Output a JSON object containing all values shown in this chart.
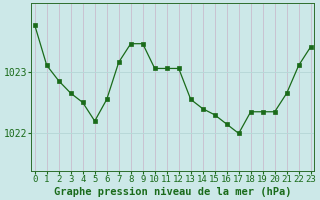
{
  "x": [
    0,
    1,
    2,
    3,
    4,
    5,
    6,
    7,
    8,
    9,
    10,
    11,
    12,
    13,
    14,
    15,
    16,
    17,
    18,
    19,
    20,
    21,
    22,
    23
  ],
  "y": [
    1023.75,
    1023.1,
    1022.85,
    1022.65,
    1022.5,
    1022.2,
    1022.55,
    1023.15,
    1023.45,
    1023.45,
    1023.05,
    1023.05,
    1023.05,
    1022.55,
    1022.4,
    1022.3,
    1022.15,
    1022.0,
    1022.35,
    1022.35,
    1022.35,
    1022.65,
    1023.1,
    1023.4
  ],
  "line_color": "#1a6b1a",
  "marker": "s",
  "marker_size": 2.5,
  "bg_color": "#cce8e8",
  "vertical_grid_color": "#c8b4c8",
  "horizontal_grid_color": "#b8d8d8",
  "ylabel_ticks": [
    1022,
    1023
  ],
  "ylim": [
    1021.4,
    1024.1
  ],
  "xlim": [
    -0.3,
    23.3
  ],
  "xlabel_label": "Graphe pression niveau de la mer (hPa)",
  "xlabel_fontsize": 7.5,
  "tick_fontsize": 6.5,
  "spine_color": "#2d6e2d"
}
